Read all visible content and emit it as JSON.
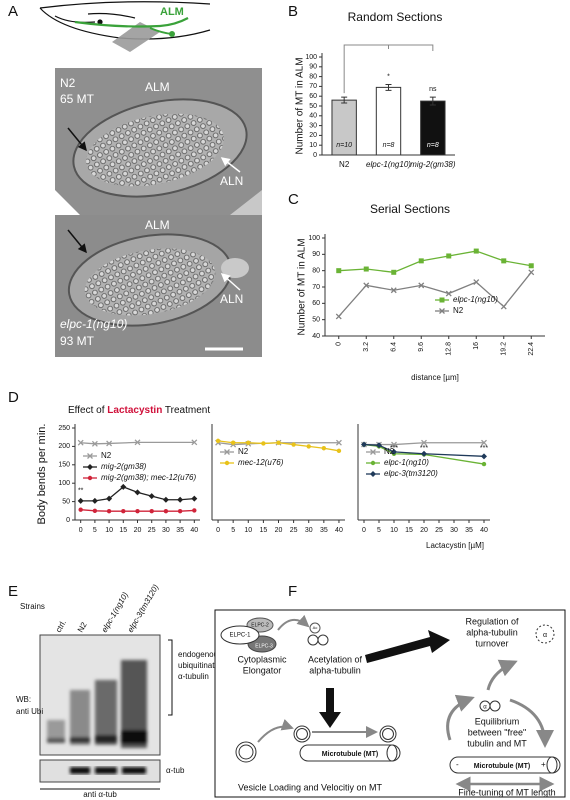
{
  "panel_labels": {
    "a": "A",
    "b": "B",
    "c": "C",
    "d": "D",
    "e": "E",
    "f": "F"
  },
  "panel_a": {
    "cartoon_label": "ALM",
    "top_image": {
      "strain": "N2",
      "count": "65 MT",
      "cell": "ALM",
      "neighbor": "ALN"
    },
    "bottom_image": {
      "strain": "elpc-1(ng10)",
      "count": "93 MT",
      "cell": "ALM",
      "neighbor": "ALN"
    }
  },
  "chart_data": [
    {
      "type": "bar",
      "title": "Random Sections",
      "y_label": "Number of MT in ALM",
      "categories": [
        "N2",
        "elpc-1(ng10)",
        "mig-2(gm38)"
      ],
      "values": [
        56,
        69,
        55
      ],
      "errors": [
        3,
        3,
        4
      ],
      "sample_sizes": [
        "n=10",
        "n=8",
        "n=8"
      ],
      "colors": [
        "#c8c8c8",
        "#ffffff",
        "#111111"
      ],
      "significance": [
        "*",
        "ns"
      ],
      "ylim": [
        0,
        100
      ],
      "yticks": [
        0,
        10,
        20,
        30,
        40,
        50,
        60,
        70,
        80,
        90,
        100
      ]
    },
    {
      "type": "line",
      "title": "Serial Sections",
      "y_label": "Number of MT in ALM",
      "x_label": "distance [µm]",
      "categories": [
        "0",
        "3.2",
        "6.4",
        "9.6",
        "12.8",
        "16",
        "19.2",
        "22.4"
      ],
      "series": [
        {
          "name": "elpc-1(ng10)",
          "color": "#6ab335",
          "marker": "square",
          "values": [
            80,
            81,
            79,
            86,
            89,
            92,
            86,
            83
          ]
        },
        {
          "name": "N2",
          "color": "#808080",
          "marker": "x",
          "values": [
            52,
            71,
            68,
            71,
            66,
            73,
            58,
            79
          ]
        }
      ],
      "ylim": [
        40,
        100
      ],
      "yticks": [
        40,
        50,
        60,
        70,
        80,
        90,
        100
      ],
      "legend": "lower right"
    },
    {
      "type": "line",
      "y_label": "Body bends per min.",
      "series": [
        {
          "name": "N2",
          "color": "#9a9a9a",
          "marker": "x",
          "x": [
            0,
            5,
            10,
            20,
            40
          ],
          "values": [
            210,
            207,
            208,
            211,
            211
          ]
        },
        {
          "name": "mig-2(gm38)",
          "color": "#222222",
          "marker": "diamond",
          "x": [
            0,
            5,
            10,
            15,
            20,
            25,
            30,
            35,
            40
          ],
          "values": [
            52,
            52,
            58,
            90,
            75,
            65,
            55,
            55,
            58
          ]
        },
        {
          "name": "mig-2(gm38); mec-12(u76)",
          "color": "#d0243a",
          "marker": "circle",
          "x": [
            0,
            5,
            10,
            15,
            20,
            25,
            30,
            35,
            40
          ],
          "values": [
            28,
            25,
            24,
            24,
            24,
            24,
            24,
            24,
            26
          ]
        }
      ],
      "annotations": [
        {
          "x": 0,
          "y": 80,
          "text": "**"
        }
      ],
      "xlim": [
        -2,
        42
      ],
      "xticks": [
        0,
        5,
        10,
        15,
        20,
        25,
        30,
        35,
        40
      ],
      "ylim": [
        0,
        250
      ],
      "yticks": [
        0,
        50,
        100,
        150,
        200,
        250
      ],
      "legend": "upper left"
    },
    {
      "type": "line",
      "series": [
        {
          "name": "N2",
          "color": "#9a9a9a",
          "marker": "x",
          "x": [
            0,
            5,
            10,
            20,
            40
          ],
          "values": [
            210,
            205,
            207,
            210,
            210
          ]
        },
        {
          "name": "mec-12(u76)",
          "color": "#e8c21a",
          "marker": "circle",
          "x": [
            0,
            5,
            10,
            15,
            20,
            25,
            30,
            35,
            40
          ],
          "values": [
            215,
            210,
            210,
            208,
            210,
            205,
            200,
            195,
            188
          ]
        }
      ],
      "xlim": [
        -2,
        42
      ],
      "xticks": [
        0,
        5,
        10,
        15,
        20,
        25,
        30,
        35,
        40
      ],
      "ylim": [
        0,
        250
      ],
      "legend": "upper left"
    },
    {
      "type": "line",
      "x_label": "Lactacystin [µM]",
      "series": [
        {
          "name": "N2",
          "color": "#9a9a9a",
          "marker": "x",
          "x": [
            0,
            5,
            10,
            20,
            40
          ],
          "values": [
            205,
            205,
            205,
            210,
            210
          ]
        },
        {
          "name": "elpc-1(ng10)",
          "color": "#6ab335",
          "marker": "circle",
          "x": [
            0,
            5,
            10,
            20,
            40
          ],
          "values": [
            205,
            200,
            180,
            178,
            152
          ]
        },
        {
          "name": "elpc-3(tm3120)",
          "color": "#1f3a5a",
          "marker": "diamond",
          "x": [
            0,
            5,
            10,
            20,
            40
          ],
          "values": [
            205,
            203,
            185,
            180,
            173
          ]
        }
      ],
      "annotations": [
        {
          "x": 10,
          "y": 195,
          "text": "***"
        },
        {
          "x": 20,
          "y": 195,
          "text": "***"
        },
        {
          "x": 40,
          "y": 195,
          "text": "***"
        }
      ],
      "xlim": [
        -2,
        42
      ],
      "xticks": [
        0,
        5,
        10,
        15,
        20,
        25,
        30,
        35,
        40
      ],
      "ylim": [
        0,
        250
      ],
      "legend": "upper left"
    }
  ],
  "panel_d": {
    "title_parts": [
      "Effect of ",
      "Lactacystin",
      " Treatment"
    ],
    "title_highlight_color": "#d0103a"
  },
  "panel_e": {
    "header": "Strains",
    "lanes": [
      "ctrl.",
      "N2",
      "elpc-1(ng10)",
      "elpc-3(tm3120)"
    ],
    "blot_label": [
      "WB:",
      "anti Ubi"
    ],
    "bracket_label": [
      "endogenous",
      "ubiquitinated",
      "α-tubulin"
    ],
    "loading_label": "α-tub",
    "loading_antibody": "anti α-tub"
  },
  "panel_f": {
    "elongator_subunits": [
      "ELPC-1",
      "ELPC-2",
      "ELPC-3"
    ],
    "elongator_label": [
      "Cytoplasmic",
      "Elongator"
    ],
    "acetyl_tag": "Ac",
    "acetylation_label": [
      "Acetylation of",
      "alpha-tubulin"
    ],
    "turnover_label": [
      "Regulation of",
      "alpha-tubulin",
      "turnover"
    ],
    "tubulin_symbol": "α",
    "equilibrium_label": [
      "Equilibrium",
      "between \"free\"",
      "tubulin and MT"
    ],
    "microtubule_left": "Microtubule (MT)",
    "microtubule_right": "Microtubule (MT)",
    "minus_end": "-",
    "plus_end": "+",
    "vesicle_label": "Vesicle Loading and Velocitiy on MT",
    "length_label": "Fine-tuning of MT length"
  }
}
